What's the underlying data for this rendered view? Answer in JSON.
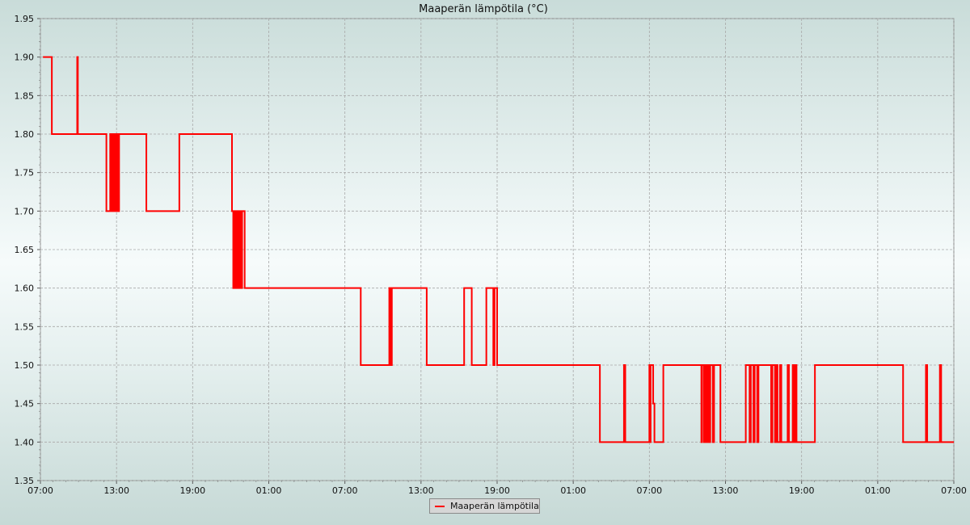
{
  "chart_data": {
    "type": "line",
    "title": "Maaperän lämpötila (°C)",
    "xlabel": "",
    "ylabel": "",
    "ylim": [
      1.35,
      1.95
    ],
    "yticks": [
      "1.35",
      "1.40",
      "1.45",
      "1.50",
      "1.55",
      "1.60",
      "1.65",
      "1.70",
      "1.75",
      "1.80",
      "1.85",
      "1.90",
      "1.95"
    ],
    "xrange_hours": [
      0,
      72
    ],
    "xtick_labels": [
      "07:00",
      "13:00",
      "19:00",
      "01:00",
      "07:00",
      "13:00",
      "19:00",
      "01:00",
      "07:00",
      "13:00",
      "19:00",
      "01:00",
      "07:00"
    ],
    "grid": true,
    "legend_position": "bottom-center",
    "series_color": "#ff0000",
    "series": [
      {
        "name": "Maaperän lämpötila",
        "step": true,
        "x_hours": [
          0.2,
          0.85,
          0.9,
          2.8,
          2.9,
          2.95,
          5.1,
          5.2,
          5.5,
          5.55,
          5.6,
          5.7,
          5.8,
          5.9,
          6.0,
          6.1,
          6.2,
          6.3,
          8.3,
          8.35,
          10.9,
          10.95,
          15.1,
          15.2,
          15.3,
          15.4,
          15.5,
          15.6,
          15.7,
          15.8,
          15.9,
          16.1,
          16.2,
          25.2,
          25.25,
          27.5,
          27.55,
          27.6,
          27.7,
          28.1,
          29.0,
          30.4,
          30.45,
          33.3,
          33.4,
          33.9,
          34.0,
          35.1,
          35.15,
          35.6,
          35.7,
          35.8,
          36.0,
          37.5,
          37.55,
          41.8,
          41.9,
          44.0,
          44.1,
          46.0,
          46.1,
          47.9,
          48.0,
          48.05,
          48.1,
          48.3,
          48.4,
          49.0,
          49.1,
          52.0,
          52.1,
          52.15,
          52.3,
          52.4,
          52.5,
          52.6,
          52.7,
          52.8,
          53.0,
          53.1,
          53.6,
          55.5,
          55.6,
          55.9,
          56.0,
          56.2,
          56.3,
          56.5,
          56.6,
          57.6,
          57.7,
          57.9,
          58.0,
          58.1,
          58.3,
          58.4,
          58.9,
          59.0,
          59.3,
          59.4,
          59.5,
          59.6,
          61.0,
          61.05,
          68.0,
          68.1,
          69.8,
          69.9,
          70.0,
          70.9,
          71.0,
          72.0
        ],
        "values": [
          1.9,
          1.9,
          1.8,
          1.8,
          1.9,
          1.8,
          1.8,
          1.7,
          1.8,
          1.7,
          1.8,
          1.7,
          1.8,
          1.7,
          1.8,
          1.7,
          1.8,
          1.8,
          1.8,
          1.7,
          1.7,
          1.8,
          1.7,
          1.6,
          1.7,
          1.6,
          1.7,
          1.6,
          1.7,
          1.6,
          1.7,
          1.6,
          1.6,
          1.6,
          1.5,
          1.6,
          1.6,
          1.5,
          1.6,
          1.6,
          1.6,
          1.6,
          1.5,
          1.5,
          1.6,
          1.6,
          1.5,
          1.5,
          1.6,
          1.6,
          1.5,
          1.6,
          1.5,
          1.5,
          1.5,
          1.5,
          1.5,
          1.5,
          1.4,
          1.5,
          1.4,
          1.4,
          1.5,
          1.4,
          1.5,
          1.45,
          1.4,
          1.4,
          1.5,
          1.5,
          1.4,
          1.5,
          1.4,
          1.5,
          1.4,
          1.5,
          1.4,
          1.5,
          1.4,
          1.5,
          1.4,
          1.4,
          1.5,
          1.4,
          1.5,
          1.4,
          1.5,
          1.4,
          1.5,
          1.4,
          1.5,
          1.4,
          1.5,
          1.4,
          1.5,
          1.4,
          1.5,
          1.4,
          1.5,
          1.4,
          1.5,
          1.4,
          1.4,
          1.5,
          1.4,
          1.4,
          1.5,
          1.4,
          1.4,
          1.5,
          1.4,
          1.4
        ]
      }
    ]
  }
}
